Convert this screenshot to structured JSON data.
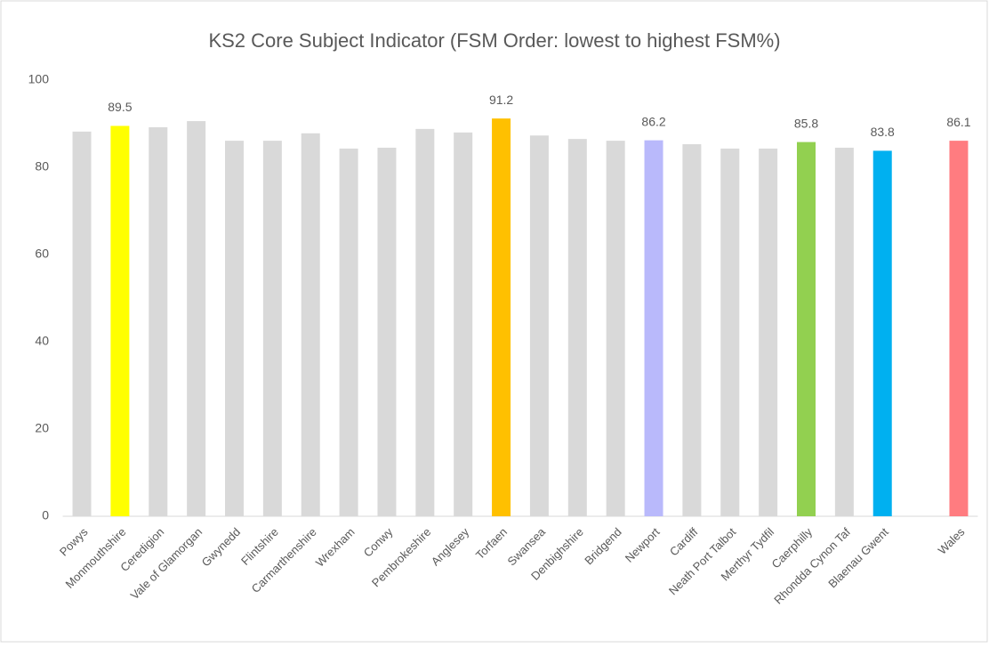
{
  "chart_data": {
    "type": "bar",
    "title": "KS2 Core Subject Indicator (FSM Order: lowest to highest FSM%)",
    "categories": [
      "Powys",
      "Monmouthshire",
      "Ceredigion",
      "Vale of Glamorgan",
      "Gwynedd",
      "Flintshire",
      "Carmarthenshire",
      "Wrexham",
      "Conwy",
      "Pembrokeshire",
      "Anglesey",
      "Torfaen",
      "Swansea",
      "Denbighshire",
      "Bridgend",
      "Newport",
      "Cardiff",
      "Neath Port Talbot",
      "Merthyr Tydfil",
      "Caerphilly",
      "Rhondda Cynon Taf",
      "Blaenau Gwent",
      null,
      "Wales"
    ],
    "values": [
      88.2,
      89.5,
      89.2,
      90.6,
      86.1,
      86.1,
      87.8,
      84.3,
      84.5,
      88.8,
      88.0,
      91.2,
      87.3,
      86.5,
      86.1,
      86.2,
      85.3,
      84.3,
      84.3,
      85.8,
      84.5,
      83.8,
      null,
      86.1
    ],
    "colors": [
      "#d9d9d9",
      "#ffff00",
      "#d9d9d9",
      "#d9d9d9",
      "#d9d9d9",
      "#d9d9d9",
      "#d9d9d9",
      "#d9d9d9",
      "#d9d9d9",
      "#d9d9d9",
      "#d9d9d9",
      "#ffc000",
      "#d9d9d9",
      "#d9d9d9",
      "#d9d9d9",
      "#b9b9fb",
      "#d9d9d9",
      "#d9d9d9",
      "#d9d9d9",
      "#92d050",
      "#d9d9d9",
      "#00b0f0",
      null,
      "#ff7c80"
    ],
    "labeled_indices": [
      1,
      11,
      15,
      19,
      21,
      23
    ],
    "ylim": [
      0,
      100
    ],
    "yticks": [
      0,
      20,
      40,
      60,
      80,
      100
    ],
    "grid": false
  }
}
